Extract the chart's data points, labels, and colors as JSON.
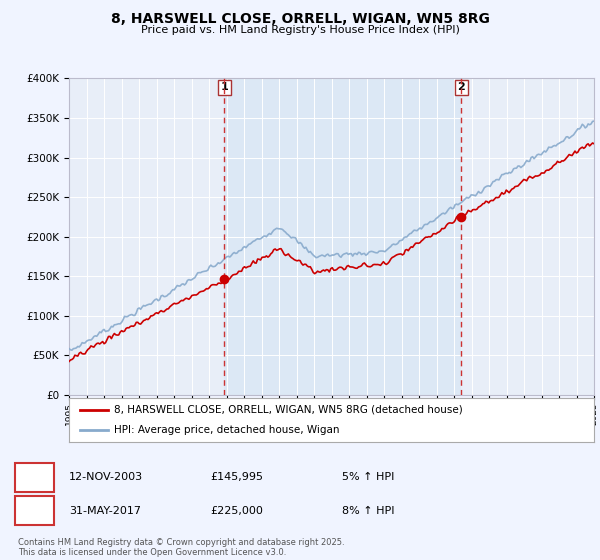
{
  "title": "8, HARSWELL CLOSE, ORRELL, WIGAN, WN5 8RG",
  "subtitle": "Price paid vs. HM Land Registry's House Price Index (HPI)",
  "ylim": [
    0,
    400000
  ],
  "yticks": [
    0,
    50000,
    100000,
    150000,
    200000,
    250000,
    300000,
    350000,
    400000
  ],
  "ytick_labels": [
    "£0",
    "£50K",
    "£100K",
    "£150K",
    "£200K",
    "£250K",
    "£300K",
    "£350K",
    "£400K"
  ],
  "sale1_x": 2003.87,
  "sale1_y": 145995,
  "sale1_label": "1",
  "sale2_x": 2017.42,
  "sale2_y": 225000,
  "sale2_label": "2",
  "line_color_red": "#cc0000",
  "line_color_blue": "#88aacc",
  "marker_color": "#cc0000",
  "vline_color": "#cc3333",
  "background_color": "#f0f4ff",
  "plot_bg": "#e8eef8",
  "shade_bg": "#dce8f5",
  "legend_label_red": "8, HARSWELL CLOSE, ORRELL, WIGAN, WN5 8RG (detached house)",
  "legend_label_blue": "HPI: Average price, detached house, Wigan",
  "note1_date": "12-NOV-2003",
  "note1_price": "£145,995",
  "note1_pct": "5% ↑ HPI",
  "note2_date": "31-MAY-2017",
  "note2_price": "£225,000",
  "note2_pct": "8% ↑ HPI",
  "footer": "Contains HM Land Registry data © Crown copyright and database right 2025.\nThis data is licensed under the Open Government Licence v3.0.",
  "xmin": 1995,
  "xmax": 2025
}
